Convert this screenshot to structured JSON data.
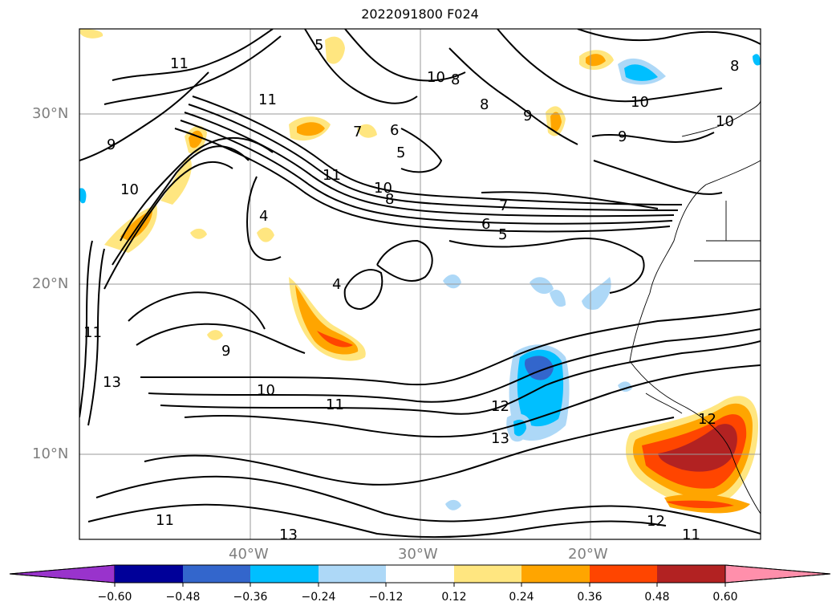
{
  "title": "2022091800 F024",
  "lat_labels": [
    "30°N",
    "20°N",
    "10°N"
  ],
  "lon_labels": [
    "40°W",
    "30°W",
    "20°W"
  ],
  "colorbar": {
    "ticks": [
      "−0.60",
      "−0.48",
      "−0.36",
      "−0.24",
      "−0.12",
      "0.12",
      "0.24",
      "0.36",
      "0.48",
      "0.60"
    ],
    "colors": [
      "#9933cc",
      "#000099",
      "#3366cc",
      "#00bfff",
      "#add8f7",
      "#ffffff",
      "#ffe680",
      "#ffa500",
      "#ff4500",
      "#b22222",
      "#ff8fab"
    ]
  },
  "contour_labels": [
    "11",
    "10",
    "9",
    "8",
    "7",
    "6",
    "5",
    "4",
    "13",
    "12",
    "10",
    "9",
    "8",
    "11",
    "10",
    "12",
    "11",
    "13",
    "6",
    "10",
    "11",
    "5",
    "9",
    "7",
    "5",
    "4",
    "8",
    "10",
    "11",
    "12",
    "13",
    "11",
    "11",
    "10",
    "9",
    "8"
  ]
}
